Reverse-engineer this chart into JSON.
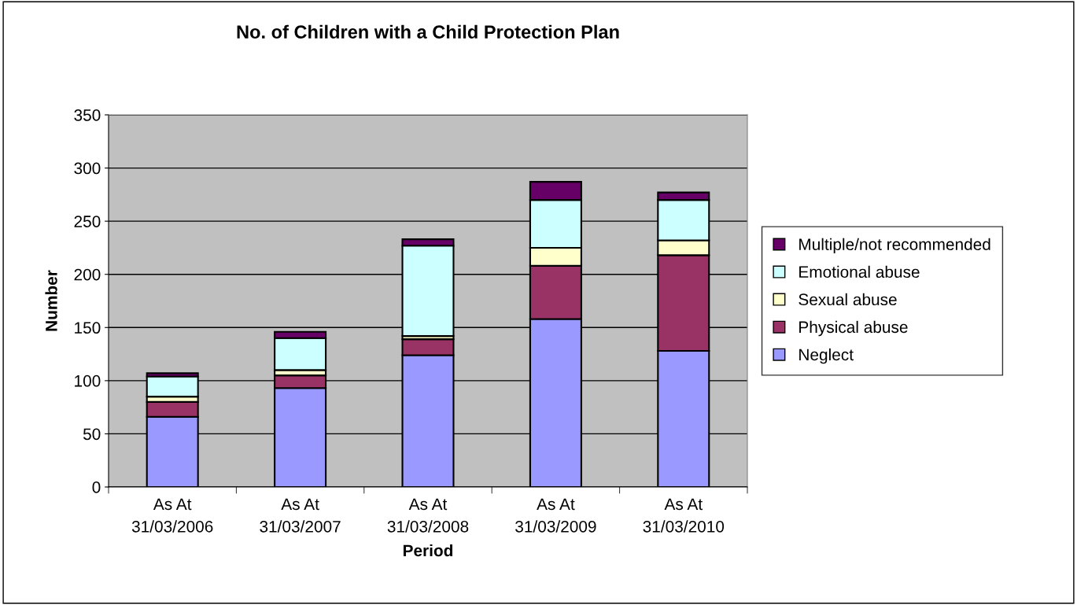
{
  "chart_data": {
    "type": "bar",
    "title": "No. of Children with a Child Protection Plan",
    "xlabel": "Period",
    "ylabel": "Number",
    "categories": [
      "As At\n31/03/2006",
      "As At\n31/03/2007",
      "As At\n31/03/2008",
      "As At\n31/03/2009",
      "As At\n31/03/2010"
    ],
    "stacked": true,
    "series": [
      {
        "name": "Neglect",
        "color": "#9999ff",
        "values": [
          66,
          93,
          124,
          158,
          128
        ]
      },
      {
        "name": "Physical abuse",
        "color": "#993366",
        "values": [
          14,
          12,
          15,
          50,
          90
        ]
      },
      {
        "name": "Sexual abuse",
        "color": "#ffffcc",
        "values": [
          5,
          5,
          3,
          17,
          14
        ]
      },
      {
        "name": "Emotional abuse",
        "color": "#ccffff",
        "values": [
          19,
          30,
          85,
          45,
          38
        ]
      },
      {
        "name": "Multiple/not recommended",
        "color": "#660066",
        "values": [
          3,
          6,
          6,
          17,
          7
        ]
      }
    ],
    "ylim": [
      0,
      350
    ],
    "yticks": [
      0,
      50,
      100,
      150,
      200,
      250,
      300,
      350
    ],
    "grid": "y",
    "legend": "right"
  }
}
